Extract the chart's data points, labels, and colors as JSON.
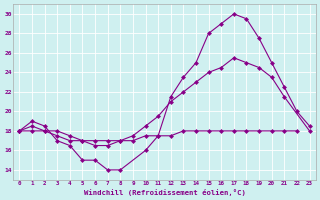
{
  "xlabel": "Windchill (Refroidissement éolien,°C)",
  "background_color": "#cff0f0",
  "line_color": "#880088",
  "ylim": [
    13,
    31
  ],
  "xlim": [
    -0.5,
    23.5
  ],
  "yticks": [
    14,
    16,
    18,
    20,
    22,
    24,
    26,
    28,
    30
  ],
  "xticks": [
    0,
    1,
    2,
    3,
    4,
    5,
    6,
    7,
    8,
    9,
    10,
    11,
    12,
    13,
    14,
    15,
    16,
    17,
    18,
    19,
    20,
    21,
    22,
    23
  ],
  "series": [
    [
      18.0,
      19.0,
      18.5,
      17.0,
      16.5,
      15.0,
      15.0,
      14.0,
      14.0,
      16.0,
      17.5,
      21.5,
      23.5,
      25.0,
      28.0,
      29.0,
      30.0,
      29.5,
      27.5,
      25.0,
      22.5,
      20.0,
      18.5
    ],
    [
      18.0,
      18.0,
      18.0,
      18.0,
      17.5,
      17.0,
      17.0,
      17.0,
      17.0,
      17.0,
      17.5,
      17.5,
      17.5,
      18.0,
      18.0,
      18.0,
      18.0,
      18.0,
      18.0,
      18.0,
      18.0,
      18.0,
      18.0
    ],
    [
      18.0,
      18.5,
      18.0,
      17.5,
      17.0,
      17.0,
      16.5,
      16.5,
      17.0,
      17.5,
      18.5,
      19.5,
      21.0,
      22.0,
      23.0,
      24.0,
      24.5,
      25.5,
      25.0,
      24.5,
      23.5,
      21.5,
      18.0
    ]
  ],
  "series_x": [
    [
      0,
      1,
      2,
      3,
      4,
      5,
      6,
      7,
      8,
      10,
      11,
      12,
      13,
      14,
      15,
      16,
      17,
      18,
      19,
      20,
      21,
      22,
      23
    ],
    [
      0,
      1,
      2,
      3,
      4,
      5,
      6,
      7,
      8,
      9,
      10,
      11,
      12,
      13,
      14,
      15,
      16,
      17,
      18,
      19,
      20,
      21,
      22
    ],
    [
      0,
      1,
      2,
      3,
      4,
      5,
      6,
      7,
      8,
      9,
      10,
      11,
      12,
      13,
      14,
      15,
      16,
      17,
      18,
      19,
      20,
      21,
      23
    ]
  ]
}
